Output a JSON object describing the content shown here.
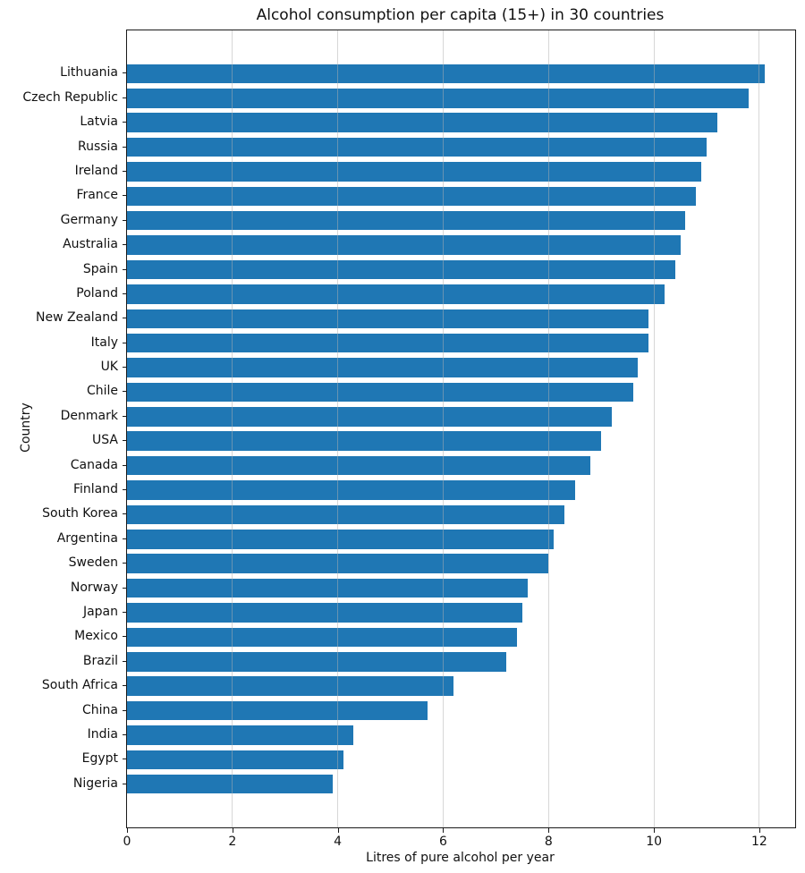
{
  "chart_data": {
    "type": "bar",
    "orientation": "horizontal",
    "title": "Alcohol consumption per capita (15+) in 30 countries",
    "xlabel": "Litres of pure alcohol per year",
    "ylabel": "Country",
    "categories": [
      "Lithuania",
      "Czech Republic",
      "Latvia",
      "Russia",
      "Ireland",
      "France",
      "Germany",
      "Australia",
      "Spain",
      "Poland",
      "New Zealand",
      "Italy",
      "UK",
      "Chile",
      "Denmark",
      "USA",
      "Canada",
      "Finland",
      "South Korea",
      "Argentina",
      "Sweden",
      "Norway",
      "Japan",
      "Mexico",
      "Brazil",
      "South Africa",
      "China",
      "India",
      "Egypt",
      "Nigeria"
    ],
    "values": [
      12.1,
      11.8,
      11.2,
      11.0,
      10.9,
      10.8,
      10.6,
      10.5,
      10.4,
      10.2,
      9.9,
      9.9,
      9.7,
      9.6,
      9.2,
      9.0,
      8.8,
      8.5,
      8.3,
      8.1,
      8.0,
      7.6,
      7.5,
      7.4,
      7.2,
      6.2,
      5.7,
      4.3,
      4.1,
      3.9
    ],
    "xticks": [
      0,
      2,
      4,
      6,
      8,
      10,
      12
    ],
    "xtick_labels": [
      "0",
      "2",
      "4",
      "6",
      "8",
      "10",
      "12"
    ],
    "xlim": [
      0,
      12.68
    ],
    "grid": "x",
    "grid_on_top": true,
    "bar_color": "#1f77b4",
    "background_color": "#ffffff",
    "spine_color": "#1a1a1a"
  }
}
